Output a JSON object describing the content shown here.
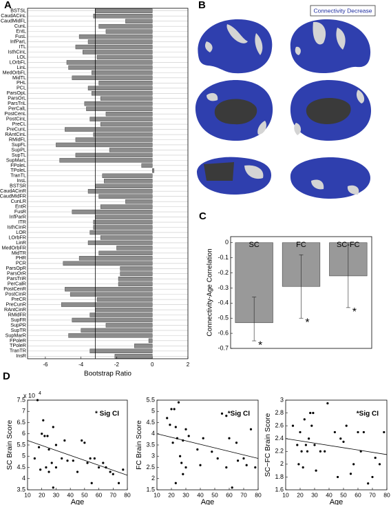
{
  "panel_labels": [
    "A",
    "B",
    "C",
    "D"
  ],
  "brain_legend": "Connectivity Decrease",
  "chart_data": [
    {
      "type": "bar",
      "orientation": "horizontal",
      "color": "#8c8c8c",
      "categories": [
        "BSTSL",
        "CaudACinL",
        "CaudMidFL",
        "CunL",
        "EntL",
        "FusL",
        "InfParL",
        "ITL",
        "IsthCinL",
        "LOL",
        "LOrbFL",
        "LinL",
        "MedOrbFL",
        "MidTL",
        "PHL",
        "PCL",
        "ParsOpL",
        "ParsOrL",
        "ParsTriL",
        "PerCalL",
        "PostCenL",
        "PostCinL",
        "PreCL",
        "PreCunL",
        "RAntCinL",
        "RMidFL",
        "SupFL",
        "SupPL",
        "SupTL",
        "SupMarL",
        "FPoleL",
        "TPoleL",
        "TranTL",
        "InsL",
        "BSTSR",
        "CaudACinR",
        "CaudMidFR",
        "CunLR",
        "EntR",
        "FusR",
        "InfParR",
        "ITR",
        "IsthCinR",
        "LOR",
        "LOrbFR",
        "LinR",
        "MedOrbFR",
        "MidTR",
        "PHR",
        "PCR",
        "ParsOpR",
        "ParsOrR",
        "ParsTriR",
        "PerCalR",
        "PostCenR",
        "PostCinR",
        "PreCR",
        "PreCunR",
        "RAntCinR",
        "RMidFR",
        "SupFR",
        "SupPR",
        "SupTR",
        "SupMarR",
        "FPoleR",
        "TPoleR",
        "TranTR",
        "InsR"
      ],
      "values": [
        -3.2,
        -3.3,
        -1.5,
        -3.0,
        -2.6,
        -4.1,
        -3.6,
        -4.3,
        -3.9,
        -3.1,
        -4.8,
        -4.7,
        -3.4,
        -4.5,
        -3.0,
        -3.6,
        -3.4,
        -2.9,
        -3.8,
        -3.7,
        -2.6,
        -3.5,
        -2.9,
        -4.9,
        -3.3,
        -4.3,
        -5.4,
        -2.4,
        -4.3,
        -5.2,
        -0.6,
        0.1,
        -2.8,
        -2.7,
        -3.2,
        -3.6,
        -3.0,
        -1.5,
        -2.9,
        -4.5,
        -3.2,
        -3.3,
        -3.3,
        -3.5,
        -2.9,
        -3.6,
        -2.0,
        -3.0,
        -4.1,
        -5.0,
        -1.8,
        -1.8,
        -1.9,
        -1.9,
        -4.9,
        -4.6,
        -3.1,
        -5.1,
        -3.2,
        -3.5,
        -4.5,
        -2.6,
        -4.0,
        -4.7,
        -0.2,
        -1.0,
        -3.5,
        -2.1
      ],
      "reference_line": -3.2,
      "xlim": [
        -7,
        2
      ],
      "xticks": [
        -6,
        -4,
        -2,
        0,
        2
      ],
      "xlabel": "Bootstrap Ratio"
    },
    {
      "type": "bar",
      "orientation": "vertical",
      "color": "#999999",
      "categories": [
        "SC",
        "FC",
        "SC-FC"
      ],
      "values": [
        -0.53,
        -0.29,
        -0.22
      ],
      "ci_low": [
        -0.65,
        -0.5,
        -0.43
      ],
      "ci_high": [
        -0.36,
        -0.08,
        0.0
      ],
      "annotations": [
        "*",
        "*",
        "*"
      ],
      "ylim": [
        -0.7,
        0.04
      ],
      "yticks": [
        0,
        -0.1,
        -0.2,
        -0.3,
        -0.4,
        -0.5,
        -0.6,
        -0.7
      ],
      "ylabel": "Connectivity-Age Correlation"
    },
    {
      "type": "scatter",
      "xlabel": "Age",
      "ylabel": "SC Brain Score",
      "annotation": "* Sig CI",
      "y_scale_label": [
        "x 10",
        "4"
      ],
      "x": [
        15,
        17,
        18,
        19,
        20,
        21,
        22,
        23,
        24,
        25,
        25,
        27,
        28,
        28,
        30,
        30,
        34,
        36,
        38,
        42,
        45,
        48,
        50,
        52,
        54,
        55,
        57,
        60,
        63,
        65,
        68,
        70,
        74,
        77
      ],
      "values": [
        4.9,
        7.5,
        5.4,
        4.4,
        6.0,
        6.6,
        5.9,
        4.5,
        5.9,
        5.3,
        4.3,
        4.7,
        6.3,
        3.6,
        4.5,
        5.5,
        4.9,
        5.7,
        4.8,
        4.8,
        4.3,
        5.7,
        5.6,
        4.7,
        4.9,
        3.8,
        4.9,
        4.5,
        4.7,
        4.5,
        4.3,
        4.2,
        3.8,
        4.4
      ],
      "fit": {
        "x": [
          10,
          80
        ],
        "y": [
          5.7,
          4.15
        ]
      },
      "xlim": [
        10,
        80
      ],
      "xticks": [
        10,
        20,
        30,
        40,
        50,
        60,
        70,
        80
      ],
      "ylim": [
        3.5,
        7.5
      ],
      "yticks": [
        3.5,
        4,
        4.5,
        5,
        5.5,
        6,
        6.5,
        7,
        7.5
      ]
    },
    {
      "type": "scatter",
      "xlabel": "Age",
      "ylabel": "FC Brain Score",
      "annotation": "*Sig CI",
      "x": [
        17,
        19,
        20,
        21,
        22,
        23,
        23,
        24,
        25,
        26,
        27,
        28,
        28,
        30,
        30,
        32,
        38,
        40,
        42,
        48,
        52,
        55,
        58,
        58,
        60,
        62,
        65,
        66,
        70,
        72,
        75,
        78
      ],
      "values": [
        4.7,
        4.4,
        5.1,
        3.6,
        5.1,
        1.8,
        4.3,
        3.8,
        5.4,
        3.0,
        2.7,
        2.2,
        3.7,
        2.5,
        4.2,
        3.9,
        3.3,
        2.6,
        3.8,
        3.2,
        2.9,
        4.9,
        4.8,
        2.5,
        3.8,
        1.6,
        3.6,
        2.8,
        2.9,
        2.6,
        4.2,
        2.5
      ],
      "fit": {
        "x": [
          10,
          80
        ],
        "y": [
          4.0,
          2.9
        ]
      },
      "xlim": [
        10,
        80
      ],
      "xticks": [
        10,
        20,
        30,
        40,
        50,
        60,
        70,
        80
      ],
      "ylim": [
        1.5,
        5.5
      ],
      "yticks": [
        1.5,
        2,
        2.5,
        3,
        3.5,
        4,
        4.5,
        5,
        5.5
      ]
    },
    {
      "type": "scatter",
      "xlabel": "Age",
      "ylabel": "SC−FC Brain Score",
      "annotation": "*Sig CI",
      "x": [
        15,
        18,
        19,
        20,
        21,
        22,
        23,
        24,
        25,
        26,
        27,
        28,
        29,
        30,
        31,
        34,
        37,
        39,
        44,
        46,
        48,
        50,
        52,
        55,
        57,
        60,
        62,
        64,
        67,
        70,
        72,
        75,
        78
      ],
      "values": [
        2.6,
        2.3,
        2.0,
        2.5,
        2.2,
        1.95,
        2.7,
        2.3,
        2.2,
        2.4,
        2.8,
        2.6,
        2.8,
        2.3,
        1.9,
        2.2,
        2.2,
        2.95,
        2.5,
        1.8,
        2.4,
        2.35,
        2.6,
        1.85,
        2.0,
        2.5,
        2.2,
        2.5,
        1.7,
        1.8,
        2.1,
        2.0,
        2.5
      ],
      "fit": {
        "x": [
          10,
          80
        ],
        "y": [
          2.4,
          2.15
        ]
      },
      "xlim": [
        10,
        80
      ],
      "xticks": [
        10,
        20,
        30,
        40,
        50,
        60,
        70,
        80
      ],
      "ylim": [
        1.6,
        3
      ],
      "yticks": [
        1.6,
        1.8,
        2,
        2.2,
        2.4,
        2.6,
        2.8,
        3
      ]
    }
  ]
}
